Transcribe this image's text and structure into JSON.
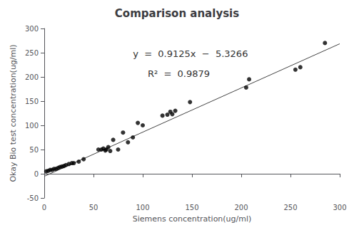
{
  "chart_data": {
    "type": "scatter",
    "title": "Comparison analysis",
    "x_label": "Siemens concentration(ug/ml)",
    "y_label": "Okay Bio test concentration(ug/ml)",
    "annotations": [
      "y  =  0.9125x  −  5.3266",
      "R²  =  0.9879"
    ],
    "xlim": [
      0,
      300
    ],
    "ylim": [
      -50,
      300
    ],
    "xticks": [
      0,
      50,
      100,
      150,
      200,
      250,
      300
    ],
    "yticks": [
      -50,
      0,
      50,
      100,
      150,
      200,
      250,
      300
    ],
    "grid": false,
    "series": [
      {
        "type": "scatter",
        "color": "#000000",
        "x": [
          2,
          4,
          6,
          8,
          10,
          12,
          14,
          16,
          18,
          20,
          22,
          25,
          28,
          30,
          35,
          40,
          55,
          58,
          60,
          62,
          63,
          65,
          67,
          70,
          75,
          80,
          85,
          90,
          95,
          100,
          120,
          125,
          128,
          130,
          133,
          148,
          205,
          208,
          255,
          260,
          285
        ],
        "values": [
          5,
          6,
          8,
          8,
          10,
          10,
          12,
          14,
          15,
          16,
          18,
          20,
          22,
          22,
          25,
          30,
          50,
          50,
          52,
          48,
          50,
          55,
          47,
          70,
          50,
          85,
          65,
          75,
          105,
          100,
          120,
          122,
          128,
          123,
          130,
          148,
          178,
          195,
          215,
          220,
          270
        ]
      },
      {
        "type": "line",
        "color": "#444444",
        "x": [
          0,
          300
        ],
        "values": [
          -5.3266,
          268.4234
        ]
      }
    ]
  }
}
